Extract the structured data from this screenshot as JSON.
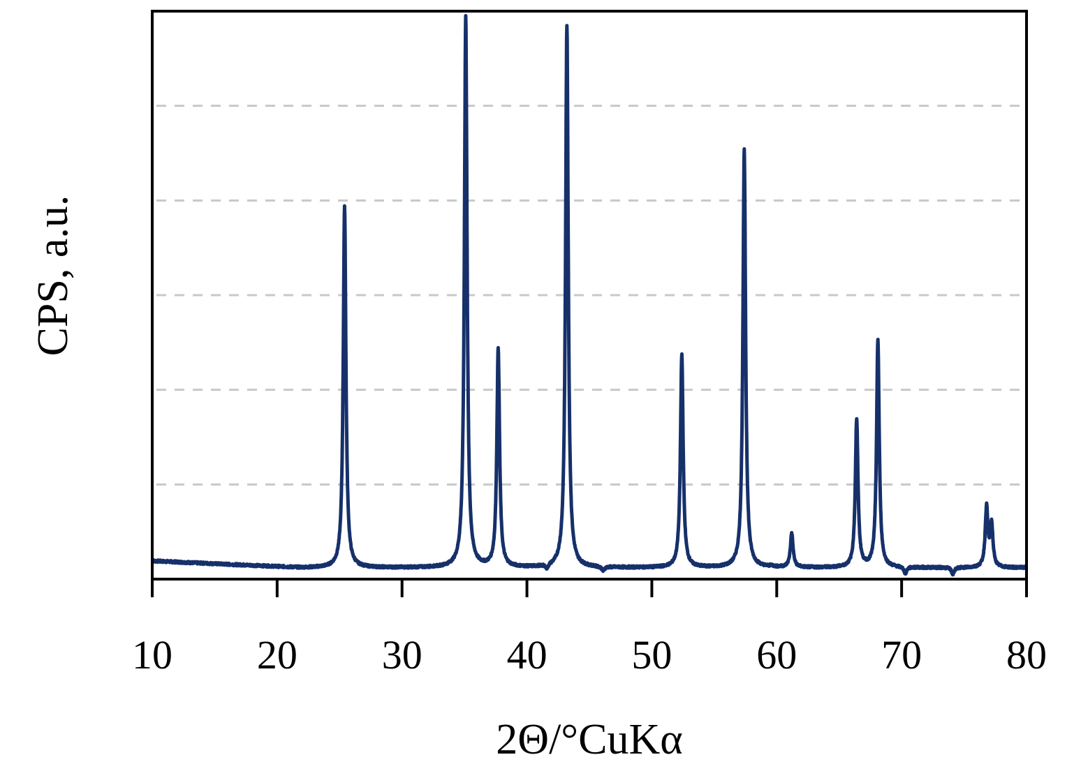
{
  "chart_data": {
    "type": "line",
    "title": "",
    "xlabel": "2Θ/°CuKα",
    "ylabel": "CPS, a.u.",
    "xlim": [
      10,
      80
    ],
    "ylim": [
      0,
      1
    ],
    "x_ticks": [
      "10",
      "20",
      "30",
      "40",
      "50",
      "60",
      "70",
      "80"
    ],
    "y_ticks_labeled": false,
    "grid": "horizontal dashed",
    "legend": "none",
    "line_color": "#16306a",
    "grid_color": "#c8c8c8",
    "baseline": 0.02,
    "background_wiggle": "slightly elevated noisy baseline from 10 to 22",
    "peaks": [
      {
        "x": 25.4,
        "height": 0.655
      },
      {
        "x": 35.1,
        "height": 0.99
      },
      {
        "x": 37.7,
        "height": 0.405
      },
      {
        "x": 41.6,
        "height": 0.012
      },
      {
        "x": 43.2,
        "height": 0.975
      },
      {
        "x": 46.1,
        "height": 0.012
      },
      {
        "x": 52.4,
        "height": 0.395
      },
      {
        "x": 57.4,
        "height": 0.755
      },
      {
        "x": 59.6,
        "height": 0.022
      },
      {
        "x": 61.2,
        "height": 0.08
      },
      {
        "x": 66.4,
        "height": 0.28
      },
      {
        "x": 68.1,
        "height": 0.42
      },
      {
        "x": 70.3,
        "height": 0.008
      },
      {
        "x": 74.1,
        "height": 0.008
      },
      {
        "x": 76.8,
        "height": 0.125
      },
      {
        "x": 77.2,
        "height": 0.095
      }
    ]
  }
}
